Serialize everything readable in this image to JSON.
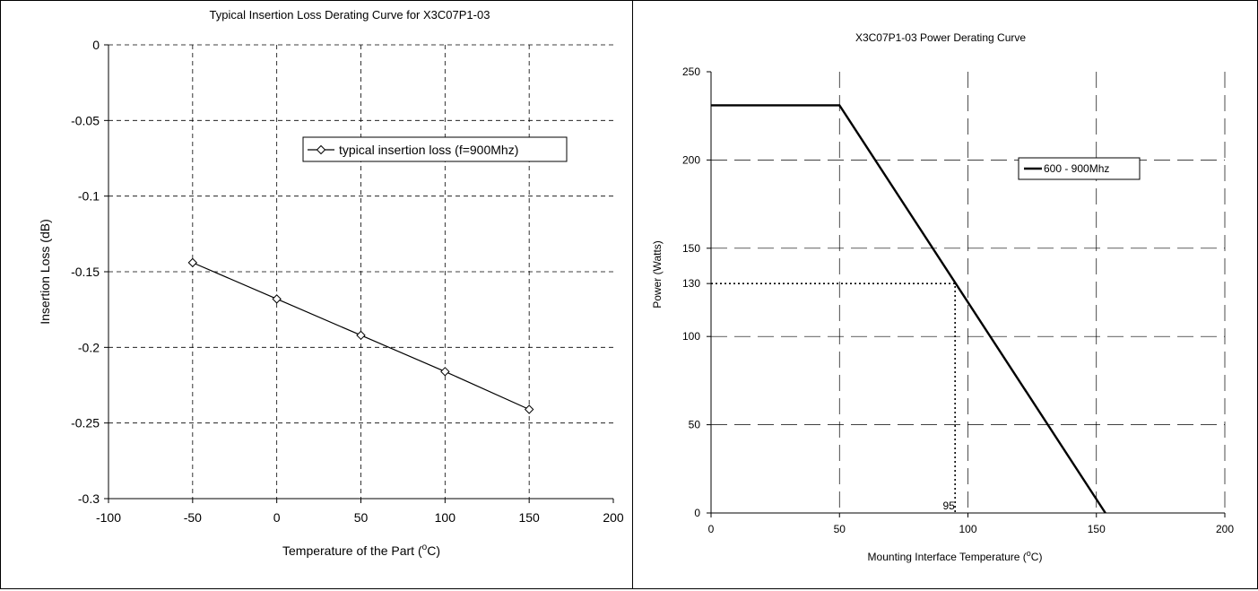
{
  "chart_data": [
    {
      "type": "line",
      "title": "Typical Insertion Loss Derating Curve for X3C07P1-03",
      "xlabel_main": "Temperature of the Part (",
      "xlabel_sup": "o",
      "xlabel_tail": "C)",
      "ylabel": "Insertion Loss (dB)",
      "xlim": [
        -100,
        200
      ],
      "ylim": [
        -0.3,
        0
      ],
      "xticks": [
        -100,
        -50,
        0,
        50,
        100,
        150,
        200
      ],
      "xtick_labels": [
        "-100",
        "-50",
        "0",
        "50",
        "100",
        "150",
        "200"
      ],
      "yticks": [
        0,
        -0.05,
        -0.1,
        -0.15,
        -0.2,
        -0.25,
        -0.3
      ],
      "ytick_labels": [
        "0",
        "-0.05",
        "-0.1",
        "-0.15",
        "-0.2",
        "-0.25",
        "-0.3"
      ],
      "grid": true,
      "legend_position": "upper-right",
      "series": [
        {
          "name": "typical insertion loss (f=900Mhz)",
          "marker": "diamond",
          "color": "#000000",
          "x": [
            -50,
            0,
            50,
            100,
            150
          ],
          "y": [
            -0.144,
            -0.168,
            -0.192,
            -0.216,
            -0.241
          ]
        }
      ]
    },
    {
      "type": "line",
      "title": "X3C07P1-03 Power Derating Curve",
      "xlabel_main": "Mounting Interface Temperature (",
      "xlabel_sup": "o",
      "xlabel_tail": "C)",
      "ylabel": "Power (Watts)",
      "xlim": [
        0,
        200
      ],
      "ylim": [
        0,
        250
      ],
      "xticks": [
        0,
        50,
        100,
        150,
        200
      ],
      "xtick_labels": [
        "0",
        "50",
        "100",
        "150",
        "200"
      ],
      "yticks": [
        0,
        50,
        100,
        150,
        200,
        250
      ],
      "ytick_labels": [
        "0",
        "50",
        "100",
        "150",
        "200",
        "250"
      ],
      "grid": true,
      "legend_position": "upper-right",
      "series": [
        {
          "name": "600 - 900Mhz",
          "color": "#000000",
          "x": [
            0,
            50,
            153.5
          ],
          "y": [
            231,
            231,
            0
          ]
        }
      ],
      "annotations": [
        {
          "x": 95,
          "y": 130,
          "xlabel": "95",
          "ylabel": "130",
          "style": "dotted"
        }
      ]
    }
  ]
}
